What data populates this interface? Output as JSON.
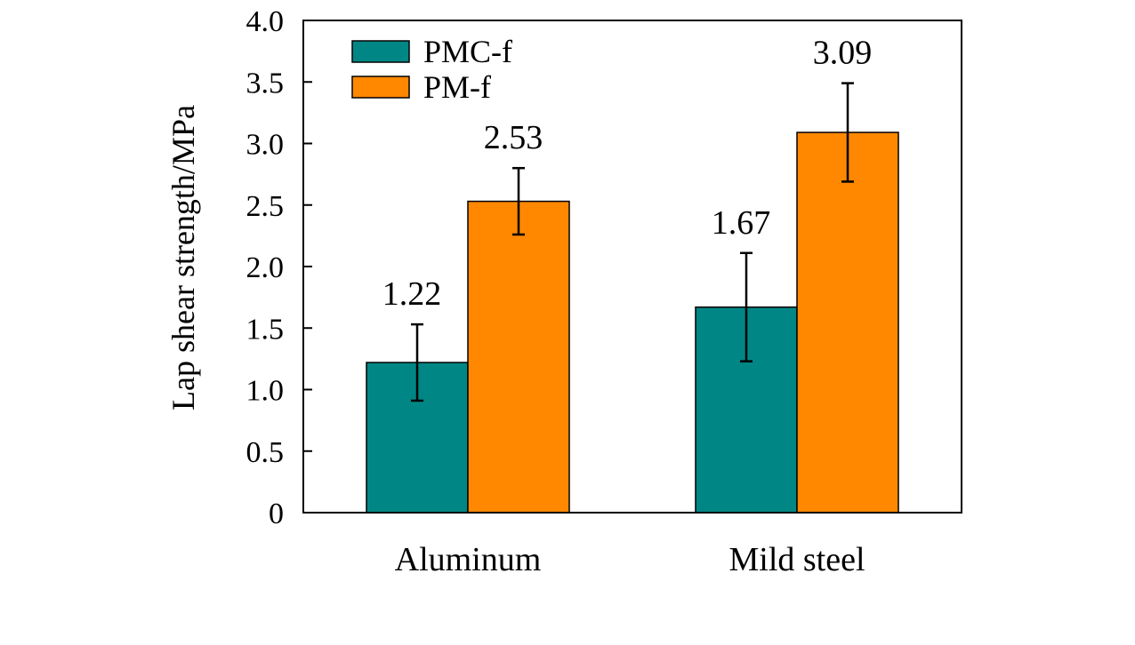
{
  "chart_data": {
    "type": "bar",
    "title": "",
    "xlabel": "",
    "ylabel": "Lap shear strength/MPa",
    "ylim": [
      0,
      4.0
    ],
    "yticks": [
      "0",
      "0.5",
      "1.0",
      "1.5",
      "2.0",
      "2.5",
      "3.0",
      "3.5",
      "4.0"
    ],
    "ytick_values": [
      0,
      0.5,
      1.0,
      1.5,
      2.0,
      2.5,
      3.0,
      3.5,
      4.0
    ],
    "categories": [
      "Aluminum",
      "Mild steel"
    ],
    "legend_position": "top-left",
    "series": [
      {
        "name": "PMC-f",
        "color": "#008785",
        "values": [
          1.22,
          1.67
        ],
        "value_labels": [
          "1.22",
          "1.67"
        ],
        "error": [
          0.31,
          0.44
        ]
      },
      {
        "name": "PM-f",
        "color": "#ff8800",
        "values": [
          2.53,
          3.09
        ],
        "value_labels": [
          "2.53",
          "3.09"
        ],
        "error": [
          0.27,
          0.4
        ]
      }
    ]
  }
}
